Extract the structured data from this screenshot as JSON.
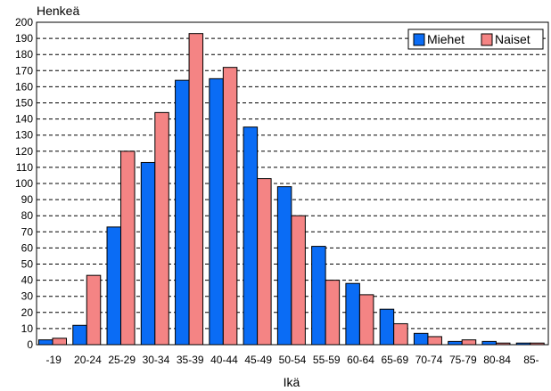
{
  "chart_data": {
    "type": "bar",
    "ylabel": "Henkeä",
    "xlabel": "Ikä",
    "categories": [
      "-19",
      "20-24",
      "25-29",
      "30-34",
      "35-39",
      "40-44",
      "45-49",
      "50-54",
      "55-59",
      "60-64",
      "65-69",
      "70-74",
      "75-79",
      "80-84",
      "85-"
    ],
    "series": [
      {
        "name": "Miehet",
        "color": "#0a6cf5",
        "values": [
          3,
          12,
          73,
          113,
          164,
          165,
          135,
          98,
          61,
          38,
          22,
          7,
          2,
          2,
          1
        ]
      },
      {
        "name": "Naiset",
        "color": "#f48484",
        "values": [
          4,
          43,
          120,
          144,
          193,
          172,
          103,
          80,
          40,
          31,
          13,
          5,
          3,
          1,
          1
        ]
      }
    ],
    "ylim": [
      0,
      200
    ],
    "ytick_step": 10,
    "grid": true,
    "legend": "top-right"
  }
}
